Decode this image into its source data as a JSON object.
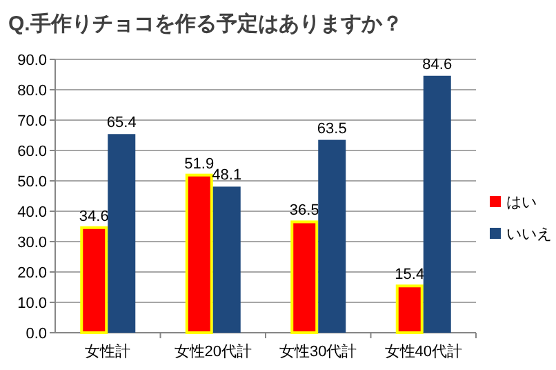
{
  "chart_data": {
    "type": "bar",
    "title": "Q.手作りチョコを作る予定はありますか？",
    "categories": [
      "女性計",
      "女性20代計",
      "女性30代計",
      "女性40代計"
    ],
    "series": [
      {
        "name": "はい",
        "color": "#ff0000",
        "values": [
          34.6,
          51.9,
          36.5,
          15.4
        ]
      },
      {
        "name": "いいえ",
        "color": "#1f497d",
        "values": [
          65.4,
          48.1,
          63.5,
          84.6
        ]
      }
    ],
    "ylim": [
      0,
      90
    ],
    "yticks": [
      {
        "value": 0,
        "label": "0.0"
      },
      {
        "value": 10,
        "label": "10.0"
      },
      {
        "value": 20,
        "label": "20.0"
      },
      {
        "value": 30,
        "label": "30.0"
      },
      {
        "value": 40,
        "label": "40.0"
      },
      {
        "value": 50,
        "label": "50.0"
      },
      {
        "value": 60,
        "label": "60.0"
      },
      {
        "value": 70,
        "label": "70.0"
      },
      {
        "value": 80,
        "label": "80.0"
      },
      {
        "value": 90,
        "label": "90.0"
      }
    ],
    "grid": "y",
    "legend": "right",
    "data_labels": true
  }
}
